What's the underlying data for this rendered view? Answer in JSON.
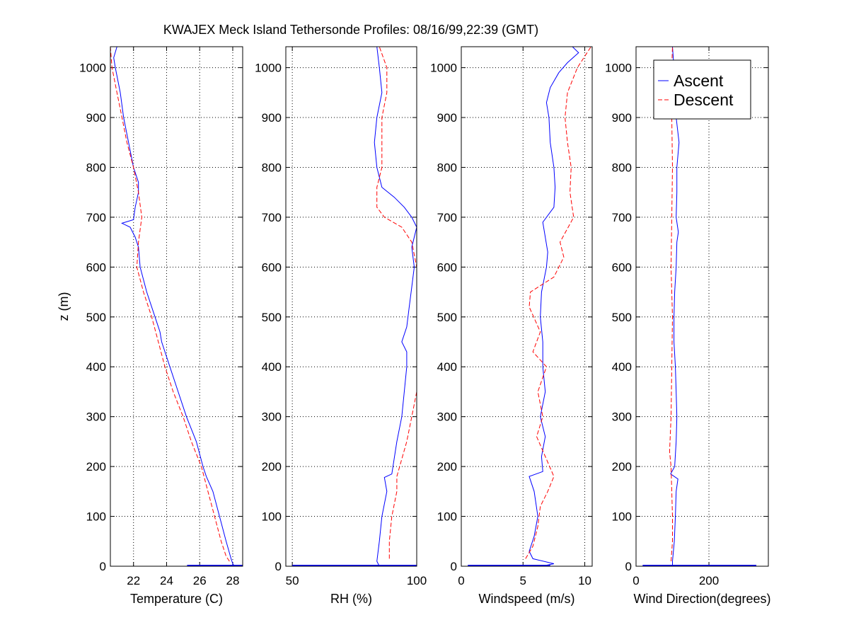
{
  "chart_data": {
    "type": "line",
    "title": "KWAJEX Meck Island Tethersonde Profiles: 08/16/99,22:39 (GMT)",
    "ylabel": "z (m)",
    "ylim": [
      0,
      1042
    ],
    "yticks": [
      0,
      100,
      200,
      300,
      400,
      500,
      600,
      700,
      800,
      900,
      1000
    ],
    "grid": true,
    "legend": {
      "placement": "top-right of last panel",
      "entries": [
        {
          "name": "Ascent",
          "color": "#0000ff",
          "style": "solid"
        },
        {
          "name": "Descent",
          "color": "#ff0000",
          "style": "dashed"
        }
      ]
    },
    "panels": [
      {
        "id": "temperature",
        "xlabel": "Temperature (C)",
        "xlim": [
          20.6,
          28.6
        ],
        "xticks": [
          22,
          24,
          26,
          28
        ],
        "xtick_labels": [
          "22",
          "24",
          "26",
          "28"
        ],
        "series": [
          {
            "name": "Ascent",
            "z": [
              0,
              5,
              15,
              50,
              100,
              150,
              180,
              200,
              250,
              300,
              350,
              400,
              450,
              470,
              500,
              550,
              600,
              640,
              660,
              680,
              688,
              695,
              720,
              750,
              770,
              800,
              850,
              900,
              950,
              1000,
              1020,
              1042
            ],
            "x": [
              28.1,
              28.0,
              27.9,
              27.6,
              27.2,
              26.8,
              26.4,
              26.2,
              25.8,
              25.2,
              24.7,
              24.2,
              23.7,
              23.6,
              23.3,
              22.8,
              22.4,
              22.3,
              22.1,
              21.8,
              21.3,
              22.0,
              22.1,
              22.3,
              22.3,
              22.0,
              21.7,
              21.4,
              21.2,
              20.9,
              20.8,
              21.0
            ]
          },
          {
            "name": "Descent",
            "z": [
              10,
              20,
              50,
              100,
              150,
              200,
              250,
              300,
              350,
              400,
              450,
              500,
              550,
              600,
              650,
              700,
              750,
              800,
              850,
              900,
              950,
              1000,
              1042
            ],
            "x": [
              27.8,
              27.6,
              27.3,
              26.9,
              26.5,
              26.1,
              25.5,
              25.0,
              24.4,
              23.9,
              23.5,
              23.1,
              22.6,
              22.2,
              22.3,
              22.5,
              22.3,
              22.0,
              21.6,
              21.3,
              21.0,
              20.7,
              20.6
            ]
          }
        ]
      },
      {
        "id": "rh",
        "xlabel": "RH (%)",
        "xlim": [
          47.4,
          100
        ],
        "xticks": [
          50,
          100
        ],
        "xtick_labels": [
          "50",
          "100"
        ],
        "series": [
          {
            "name": "Ascent",
            "z": [
              0,
              10,
              50,
              100,
              150,
              178,
              185,
              250,
              300,
              350,
              400,
              430,
              450,
              480,
              520,
              560,
              600,
              640,
              680,
              700,
              720,
              740,
              760,
              800,
              850,
              900,
              950,
              1000,
              1042
            ],
            "x": [
              85,
              84,
              85,
              86,
              88,
              87,
              90,
              92,
              94,
              95,
              96,
              96,
              94,
              96,
              97,
              98,
              99,
              98,
              100,
              98,
              95,
              91,
              86,
              84,
              83,
              84,
              86,
              85,
              84
            ]
          },
          {
            "name": "Descent",
            "z": [
              15,
              50,
              100,
              150,
              180,
              250,
              300,
              350,
              400,
              500,
              600,
              650,
              680,
              700,
              720,
              760,
              800,
              850,
              900,
              950,
              1000,
              1042
            ],
            "x": [
              89,
              89,
              90,
              92,
              92,
              96,
              98,
              100,
              100,
              100,
              100,
              98,
              94,
              87,
              84,
              84,
              86,
              86,
              86,
              88,
              88,
              85
            ]
          }
        ]
      },
      {
        "id": "windspeed",
        "xlabel": "Windspeed (m/s)",
        "xlim": [
          0,
          10.6
        ],
        "xticks": [
          0,
          5,
          10
        ],
        "xtick_labels": [
          "0",
          "5",
          "10"
        ],
        "series": [
          {
            "name": "Ascent",
            "z": [
              0,
              5,
              15,
              30,
              60,
              100,
              150,
              180,
              190,
              220,
              260,
              300,
              350,
              400,
              450,
              500,
              550,
              600,
              630,
              660,
              690,
              720,
              760,
              800,
              850,
              900,
              930,
              960,
              990,
              1010,
              1030,
              1042
            ],
            "x": [
              6.5,
              7.5,
              5.8,
              5.5,
              5.9,
              6.2,
              5.9,
              5.5,
              6.6,
              6.5,
              6.8,
              6.4,
              6.8,
              6.6,
              6.6,
              6.4,
              6.5,
              6.9,
              7.0,
              6.8,
              6.6,
              7.5,
              7.6,
              7.5,
              7.2,
              7.1,
              6.9,
              7.2,
              7.9,
              8.6,
              9.5,
              9.0
            ]
          },
          {
            "name": "Descent",
            "z": [
              15,
              40,
              80,
              120,
              150,
              180,
              220,
              260,
              300,
              350,
              400,
              430,
              470,
              520,
              550,
              580,
              620,
              650,
              700,
              750,
              800,
              850,
              900,
              950,
              1000,
              1042
            ],
            "x": [
              5.2,
              5.8,
              6.2,
              6.4,
              7.0,
              7.5,
              6.8,
              6.1,
              6.6,
              6.2,
              6.9,
              5.8,
              6.4,
              5.5,
              5.6,
              7.5,
              8.3,
              8.0,
              9.1,
              8.8,
              8.9,
              8.6,
              8.4,
              8.6,
              9.4,
              10.5
            ]
          }
        ]
      },
      {
        "id": "wind_direction",
        "xlabel": "Wind Direction(degrees)",
        "xlim": [
          0,
          363
        ],
        "xticks": [
          0,
          200
        ],
        "xtick_labels": [
          "0",
          "200"
        ],
        "series": [
          {
            "name": "Ascent",
            "z": [
              0,
              10,
              50,
              100,
              150,
              175,
              185,
              200,
              250,
              300,
              350,
              400,
              450,
              500,
              550,
              600,
              650,
              670,
              700,
              750,
              800,
              850,
              900,
              950,
              1000,
              1042
            ],
            "x": [
              100,
              100,
              105,
              108,
              110,
              115,
              95,
              106,
              110,
              112,
              110,
              108,
              104,
              104,
              106,
              110,
              112,
              116,
              110,
              112,
              112,
              118,
              110,
              108,
              104,
              100
            ]
          },
          {
            "name": "Descent",
            "z": [
              10,
              50,
              100,
              150,
              200,
              230,
              300,
              400,
              500,
              600,
              700,
              800,
              900,
              1000,
              1042
            ],
            "x": [
              96,
              100,
              100,
              98,
              96,
              92,
              96,
              98,
              100,
              96,
              98,
              100,
              98,
              98,
              100
            ]
          }
        ]
      }
    ]
  }
}
